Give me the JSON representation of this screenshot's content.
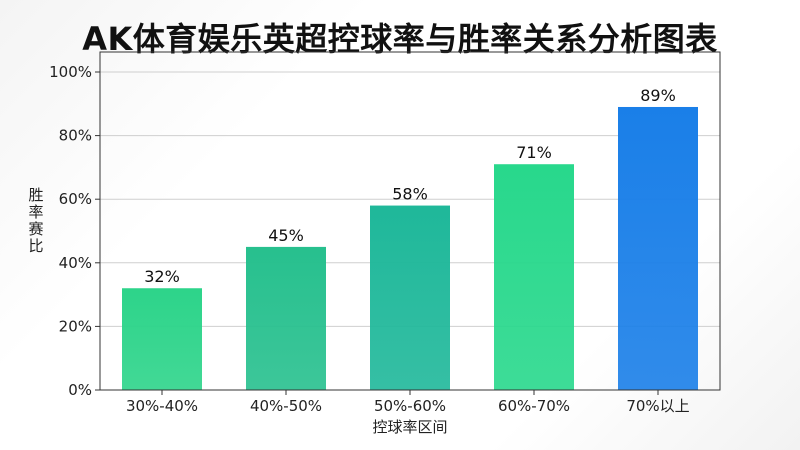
{
  "title": "AK体育娱乐英超控球率与胜率关系分析图表",
  "chart_data": {
    "type": "bar",
    "title": "AK体育娱乐英超控球率与胜率关系分析图表",
    "xlabel": "控球率区间",
    "ylabel": "胜率赛比",
    "categories": [
      "30%-40%",
      "40%-50%",
      "50%-60%",
      "60%-70%",
      "70%以上"
    ],
    "values": [
      32,
      45,
      58,
      71,
      89
    ],
    "data_labels": [
      "32%",
      "45%",
      "58%",
      "71%",
      "89%"
    ],
    "yticks": [
      0,
      20,
      40,
      60,
      80,
      100
    ],
    "ytick_labels": [
      "0%",
      "20%",
      "40%",
      "60%",
      "80%",
      "100%"
    ],
    "ylim": [
      0,
      100
    ],
    "grid": true,
    "legend": "none",
    "colors": [
      "#2dd48a",
      "#27c08e",
      "#1fb89a",
      "#28d88c",
      "#1a7fe8"
    ]
  }
}
